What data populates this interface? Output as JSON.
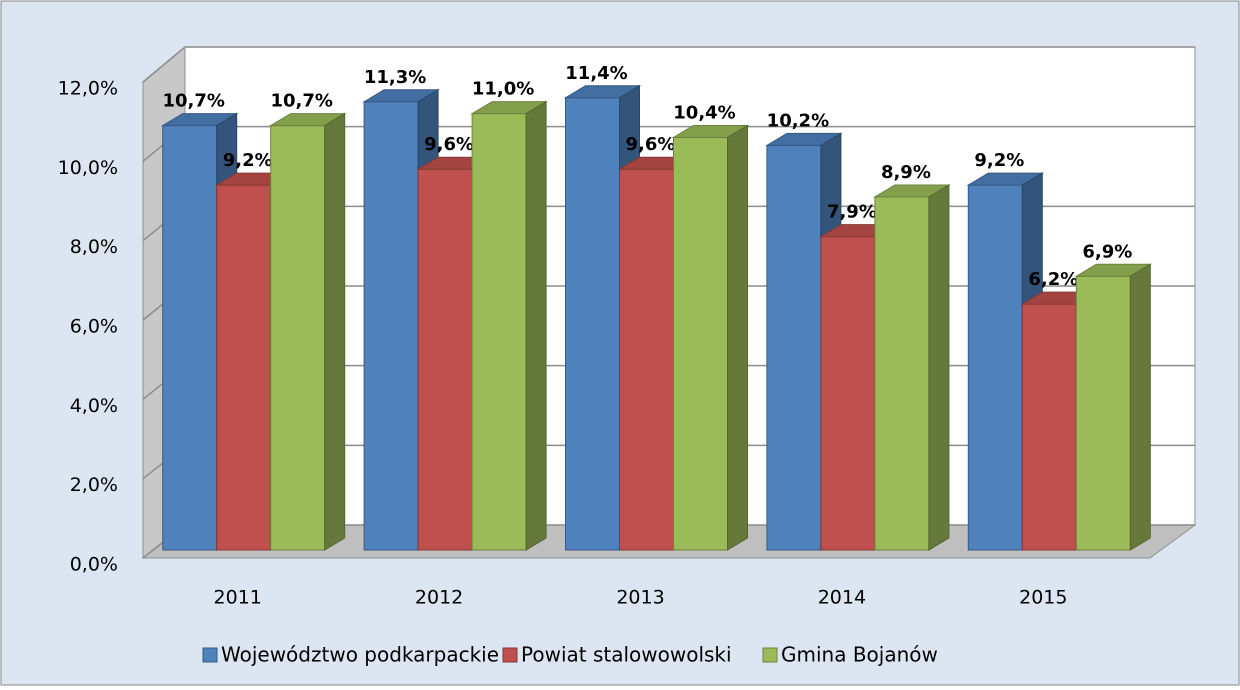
{
  "chart_data": {
    "type": "bar3d",
    "categories": [
      "2011",
      "2012",
      "2013",
      "2014",
      "2015"
    ],
    "series": [
      {
        "name": "Województwo podkarpackie",
        "color": "#4f81bd",
        "values": [
          10.7,
          11.3,
          11.4,
          10.2,
          9.2
        ],
        "value_labels": [
          "10,7%",
          "11,3%",
          "11,4%",
          "10,2%",
          "9,2%"
        ]
      },
      {
        "name": "Powiat stalowowolski",
        "color": "#c0504d",
        "values": [
          9.2,
          9.6,
          9.6,
          7.9,
          6.2
        ],
        "value_labels": [
          "9,2%",
          "9,6%",
          "9,6%",
          "7,9%",
          "6,2%"
        ]
      },
      {
        "name": "Gmina Bojanów",
        "color": "#9bbb59",
        "values": [
          10.7,
          11.0,
          10.4,
          8.9,
          6.9
        ],
        "value_labels": [
          "10,7%",
          "11,0%",
          "10,4%",
          "8,9%",
          "6,9%"
        ]
      }
    ],
    "ylim": [
      0,
      12
    ],
    "yticks": [
      {
        "value": 0,
        "label": "0,0%"
      },
      {
        "value": 2,
        "label": "2,0%"
      },
      {
        "value": 4,
        "label": "4,0%"
      },
      {
        "value": 6,
        "label": "6,0%"
      },
      {
        "value": 8,
        "label": "8,0%"
      },
      {
        "value": 10,
        "label": "10,0%"
      },
      {
        "value": 12,
        "label": "12,0%"
      }
    ],
    "grid": true,
    "legend": "bottom"
  }
}
